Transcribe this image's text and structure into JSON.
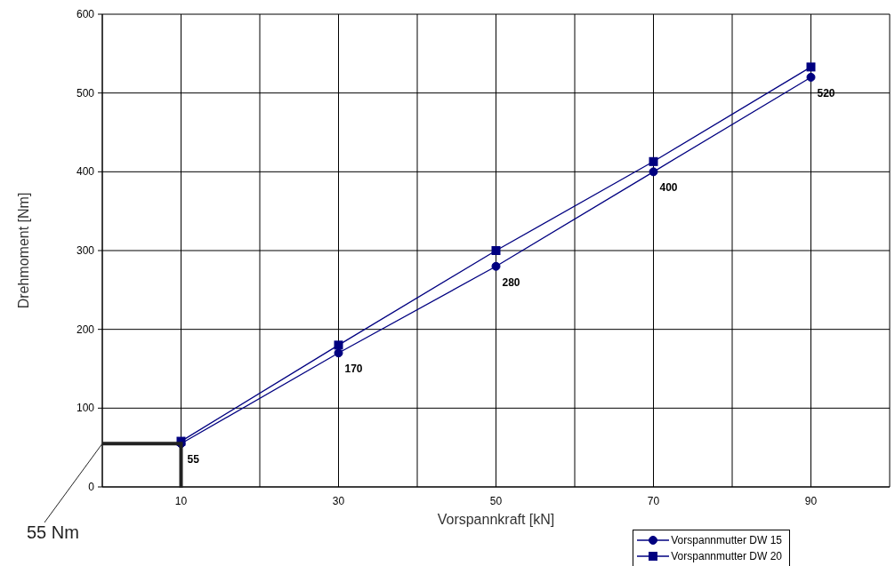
{
  "chart_data": {
    "type": "line",
    "xlabel": "Vorspannkraft [kN]",
    "ylabel": "Drehmoment [Nm]",
    "x": [
      10,
      30,
      50,
      70,
      90
    ],
    "series": [
      {
        "name": "Vorspannmutter DW 15",
        "color": "#000080",
        "marker": "circle",
        "values": [
          55,
          170,
          280,
          400,
          520
        ],
        "value_labels": [
          "55",
          "170",
          "280",
          "400",
          "520"
        ]
      },
      {
        "name": "Vorspannmutter DW 20",
        "color": "#000080",
        "marker": "square",
        "values": [
          58,
          180,
          300,
          413,
          533
        ]
      }
    ],
    "xlim": [
      0,
      100
    ],
    "xticks": [
      {
        "value": 0,
        "label": null
      },
      10,
      {
        "value": 20,
        "label": null
      },
      30,
      {
        "value": 40,
        "label": null
      },
      50,
      {
        "value": 60,
        "label": null
      },
      70,
      {
        "value": 80,
        "label": null
      },
      90,
      {
        "value": 100,
        "label": null
      }
    ],
    "ylim": [
      0,
      600
    ],
    "yticks": [
      0,
      100,
      200,
      300,
      400,
      500,
      600
    ],
    "grid": true,
    "legend": "bottom right",
    "line_style": "solid",
    "annotations": [
      "55 Nm"
    ]
  }
}
